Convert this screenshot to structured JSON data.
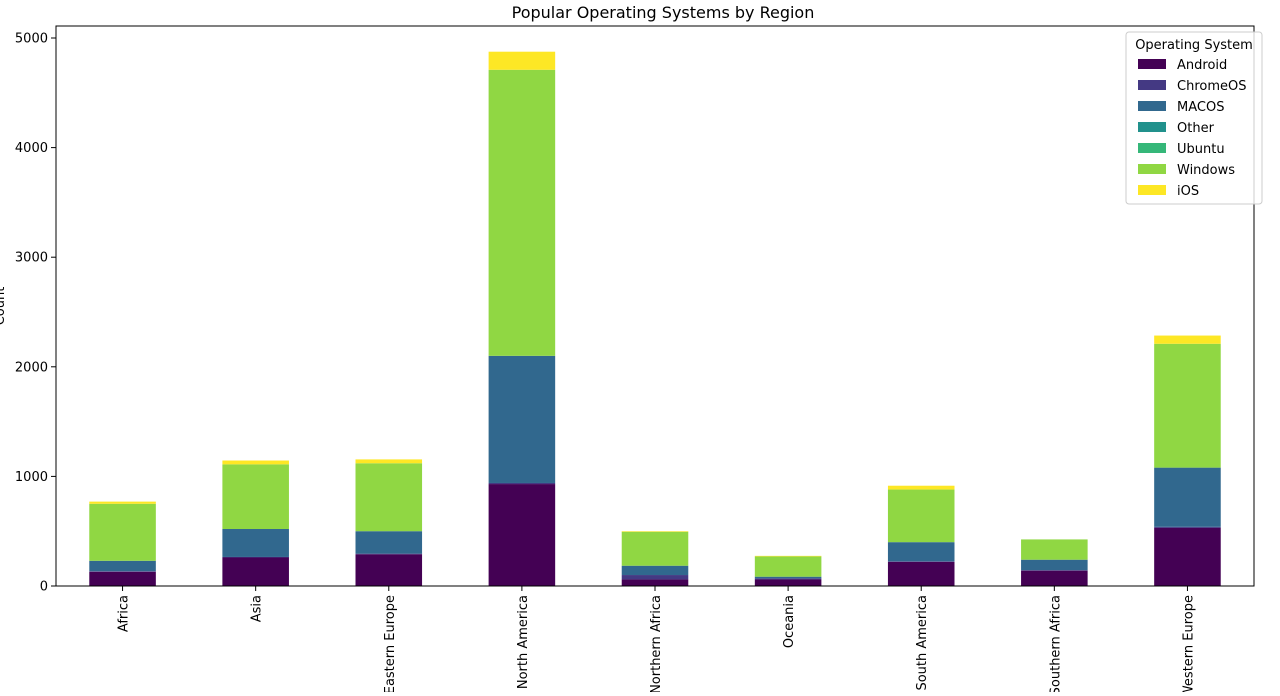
{
  "chart_data": {
    "type": "bar",
    "stacked": true,
    "title": "Popular Operating Systems by Region",
    "xlabel": "",
    "ylabel": "Count",
    "ylim": [
      0,
      5000
    ],
    "yticks": [
      0,
      1000,
      2000,
      3000,
      4000,
      5000
    ],
    "grid": false,
    "legend_title": "Operating System",
    "legend_position": "upper right",
    "categories": [
      "Africa",
      "Asia",
      "Eastern Europe",
      "North America",
      "Northern Africa",
      "Oceania",
      "South America",
      "Southern Africa",
      "Western Europe"
    ],
    "series": [
      {
        "name": "Android",
        "color": "#440154",
        "values": [
          130,
          260,
          290,
          930,
          60,
          60,
          220,
          140,
          530
        ]
      },
      {
        "name": "ChromeOS",
        "color": "#443983",
        "values": [
          5,
          5,
          5,
          10,
          40,
          10,
          5,
          5,
          10
        ]
      },
      {
        "name": "MACOS",
        "color": "#31688e",
        "values": [
          95,
          255,
          205,
          1160,
          85,
          15,
          175,
          95,
          540
        ]
      },
      {
        "name": "Other",
        "color": "#21918c",
        "values": [
          0,
          0,
          0,
          0,
          0,
          0,
          0,
          0,
          0
        ]
      },
      {
        "name": "Ubuntu",
        "color": "#35b779",
        "values": [
          0,
          0,
          0,
          0,
          0,
          0,
          0,
          0,
          0
        ]
      },
      {
        "name": "Windows",
        "color": "#90d743",
        "values": [
          520,
          590,
          620,
          2610,
          310,
          185,
          480,
          185,
          1130
        ]
      },
      {
        "name": "iOS",
        "color": "#fde725",
        "values": [
          20,
          35,
          35,
          165,
          5,
          5,
          35,
          0,
          75
        ]
      }
    ]
  }
}
